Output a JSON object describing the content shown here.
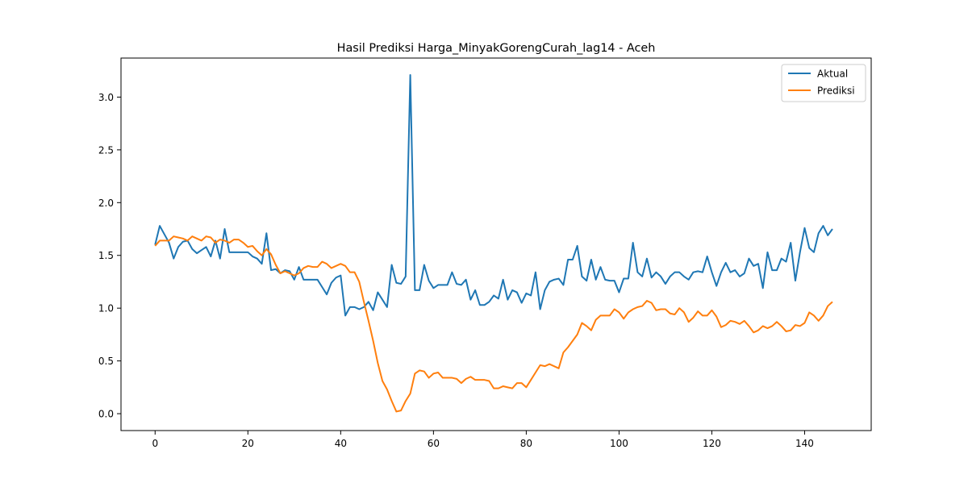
{
  "chart_data": {
    "type": "line",
    "title": "Hasil Prediksi Harga_MinyakGorengCurah_lag14 - Aceh",
    "xlabel": "",
    "ylabel": "",
    "xlim": [
      -7.35,
      154.35
    ],
    "ylim": [
      -0.16,
      3.37
    ],
    "x_ticks": [
      0,
      20,
      40,
      60,
      80,
      100,
      120,
      140
    ],
    "y_ticks": [
      0.0,
      0.5,
      1.0,
      1.5,
      2.0,
      2.5,
      3.0
    ],
    "x_tick_labels": [
      "0",
      "20",
      "40",
      "60",
      "80",
      "100",
      "120",
      "140"
    ],
    "y_tick_labels": [
      "0.0",
      "0.5",
      "1.0",
      "1.5",
      "2.0",
      "2.5",
      "3.0"
    ],
    "grid": false,
    "legend_position": "top-right",
    "x": [
      0,
      1,
      2,
      3,
      4,
      5,
      6,
      7,
      8,
      9,
      10,
      11,
      12,
      13,
      14,
      15,
      16,
      17,
      18,
      19,
      20,
      21,
      22,
      23,
      24,
      25,
      26,
      27,
      28,
      29,
      30,
      31,
      32,
      33,
      34,
      35,
      36,
      37,
      38,
      39,
      40,
      41,
      42,
      43,
      44,
      45,
      46,
      47,
      48,
      49,
      50,
      51,
      52,
      53,
      54,
      55,
      56,
      57,
      58,
      59,
      60,
      61,
      62,
      63,
      64,
      65,
      66,
      67,
      68,
      69,
      70,
      71,
      72,
      73,
      74,
      75,
      76,
      77,
      78,
      79,
      80,
      81,
      82,
      83,
      84,
      85,
      86,
      87,
      88,
      89,
      90,
      91,
      92,
      93,
      94,
      95,
      96,
      97,
      98,
      99,
      100,
      101,
      102,
      103,
      104,
      105,
      106,
      107,
      108,
      109,
      110,
      111,
      112,
      113,
      114,
      115,
      116,
      117,
      118,
      119,
      120,
      121,
      122,
      123,
      124,
      125,
      126,
      127,
      128,
      129,
      130,
      131,
      132,
      133,
      134,
      135,
      136,
      137,
      138,
      139,
      140,
      141,
      142,
      143,
      144,
      145,
      146
    ],
    "series": [
      {
        "name": "Aktual",
        "color": "#1f77b4",
        "values": [
          1.6,
          1.78,
          1.7,
          1.62,
          1.47,
          1.58,
          1.63,
          1.64,
          1.56,
          1.52,
          1.55,
          1.58,
          1.49,
          1.64,
          1.47,
          1.75,
          1.53,
          1.53,
          1.53,
          1.53,
          1.53,
          1.49,
          1.47,
          1.42,
          1.71,
          1.36,
          1.37,
          1.33,
          1.36,
          1.35,
          1.27,
          1.39,
          1.27,
          1.27,
          1.27,
          1.27,
          1.2,
          1.13,
          1.24,
          1.29,
          1.31,
          0.93,
          1.01,
          1.01,
          0.99,
          1.01,
          1.06,
          0.98,
          1.15,
          1.08,
          1.01,
          1.41,
          1.24,
          1.23,
          1.3,
          3.21,
          1.17,
          1.17,
          1.41,
          1.26,
          1.19,
          1.22,
          1.22,
          1.22,
          1.34,
          1.23,
          1.22,
          1.27,
          1.08,
          1.17,
          1.03,
          1.03,
          1.06,
          1.12,
          1.09,
          1.27,
          1.08,
          1.17,
          1.15,
          1.05,
          1.14,
          1.12,
          1.34,
          0.99,
          1.17,
          1.25,
          1.27,
          1.28,
          1.22,
          1.46,
          1.46,
          1.59,
          1.3,
          1.26,
          1.46,
          1.27,
          1.39,
          1.27,
          1.26,
          1.26,
          1.15,
          1.28,
          1.28,
          1.62,
          1.34,
          1.3,
          1.47,
          1.29,
          1.34,
          1.3,
          1.23,
          1.3,
          1.34,
          1.34,
          1.3,
          1.27,
          1.34,
          1.35,
          1.34,
          1.49,
          1.34,
          1.21,
          1.34,
          1.43,
          1.34,
          1.36,
          1.3,
          1.33,
          1.47,
          1.4,
          1.42,
          1.19,
          1.53,
          1.36,
          1.36,
          1.47,
          1.44,
          1.62,
          1.26,
          1.53,
          1.76,
          1.57,
          1.53,
          1.71,
          1.78,
          1.69,
          1.75
        ]
      },
      {
        "name": "Prediksi",
        "color": "#ff7f0e",
        "values": [
          1.59,
          1.64,
          1.64,
          1.64,
          1.68,
          1.67,
          1.66,
          1.64,
          1.68,
          1.66,
          1.64,
          1.68,
          1.67,
          1.62,
          1.65,
          1.64,
          1.62,
          1.65,
          1.65,
          1.62,
          1.58,
          1.59,
          1.54,
          1.5,
          1.56,
          1.51,
          1.41,
          1.33,
          1.35,
          1.33,
          1.31,
          1.33,
          1.38,
          1.4,
          1.39,
          1.39,
          1.44,
          1.42,
          1.38,
          1.4,
          1.42,
          1.4,
          1.34,
          1.34,
          1.25,
          1.06,
          0.88,
          0.69,
          0.48,
          0.31,
          0.23,
          0.12,
          0.02,
          0.03,
          0.12,
          0.19,
          0.38,
          0.41,
          0.4,
          0.34,
          0.38,
          0.39,
          0.34,
          0.34,
          0.34,
          0.33,
          0.29,
          0.33,
          0.35,
          0.32,
          0.32,
          0.32,
          0.31,
          0.24,
          0.24,
          0.26,
          0.25,
          0.24,
          0.29,
          0.29,
          0.25,
          0.32,
          0.39,
          0.46,
          0.45,
          0.47,
          0.45,
          0.43,
          0.58,
          0.63,
          0.69,
          0.75,
          0.86,
          0.83,
          0.79,
          0.89,
          0.93,
          0.93,
          0.93,
          0.99,
          0.96,
          0.9,
          0.96,
          0.99,
          1.01,
          1.02,
          1.07,
          1.05,
          0.98,
          0.99,
          0.99,
          0.95,
          0.94,
          1.0,
          0.96,
          0.87,
          0.91,
          0.97,
          0.93,
          0.93,
          0.98,
          0.92,
          0.82,
          0.84,
          0.88,
          0.87,
          0.85,
          0.88,
          0.83,
          0.77,
          0.79,
          0.83,
          0.81,
          0.83,
          0.87,
          0.83,
          0.78,
          0.79,
          0.84,
          0.83,
          0.86,
          0.96,
          0.93,
          0.88,
          0.93,
          1.02,
          1.06
        ]
      }
    ]
  }
}
